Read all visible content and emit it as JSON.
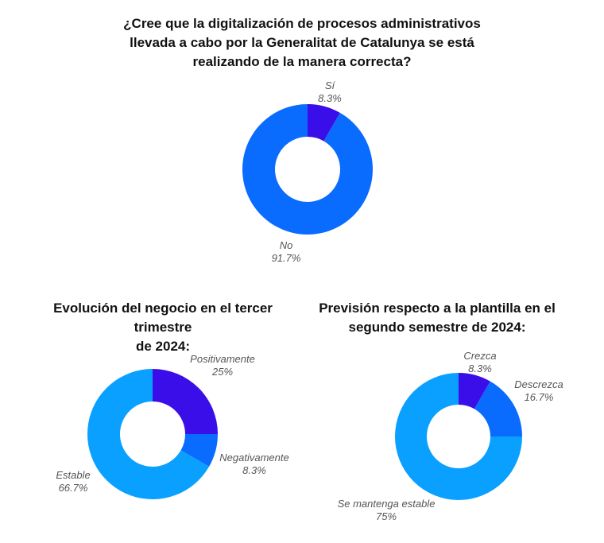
{
  "chart_data": [
    {
      "type": "pie",
      "title": "¿Cree que la digitalización de procesos administrativos llevada a cabo por la Generalitat de Catalunya se está realizando de la manera correcta?",
      "title_lines": [
        "¿Cree que la digitalización de procesos administrativos",
        "llevada a cabo por la Generalitat de Catalunya se está",
        "realizando de la manera correcta?"
      ],
      "donut": true,
      "slices": [
        {
          "label": "Sí",
          "value": 8.3,
          "value_label": "8.3%",
          "color": "#3a0ee8"
        },
        {
          "label": "No",
          "value": 91.7,
          "value_label": "91.7%",
          "color": "#0a6bff"
        }
      ]
    },
    {
      "type": "pie",
      "title": "Evolución del negocio en el tercer trimestre de 2024:",
      "title_lines": [
        "Evolución del negocio en el tercer trimestre",
        "de 2024:"
      ],
      "donut": true,
      "slices": [
        {
          "label": "Positivamente",
          "value": 25,
          "value_label": "25%",
          "color": "#3a0ee8"
        },
        {
          "label": "Negativamente",
          "value": 8.3,
          "value_label": "8.3%",
          "color": "#0a6bff"
        },
        {
          "label": "Estable",
          "value": 66.7,
          "value_label": "66.7%",
          "color": "#0aa0ff"
        }
      ]
    },
    {
      "type": "pie",
      "title": "Previsión respecto a la plantilla en el segundo semestre de 2024:",
      "title_lines": [
        "Previsión respecto a la plantilla en el",
        "segundo semestre de 2024:"
      ],
      "donut": true,
      "slices": [
        {
          "label": "Crezca",
          "value": 8.3,
          "value_label": "8.3%",
          "color": "#3a0ee8"
        },
        {
          "label": "Descrezca",
          "value": 16.7,
          "value_label": "16.7%",
          "color": "#0a6bff"
        },
        {
          "label": "Se mantenga estable",
          "value": 75,
          "value_label": "75%",
          "color": "#0aa0ff"
        }
      ]
    }
  ]
}
